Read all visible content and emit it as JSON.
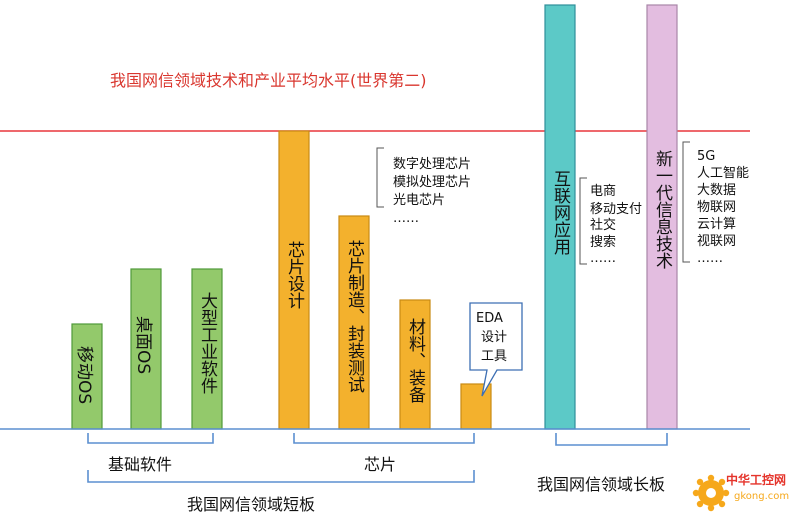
{
  "reference_line": {
    "label": "我国网信领域技术和产业平均水平(世界第二)",
    "color": "#e8373c"
  },
  "bars": [
    {
      "id": "mobile-os",
      "label": "移动OS",
      "color": "#93c96b",
      "border": "#4f9a3a"
    },
    {
      "id": "desktop-os",
      "label": "桌面OS",
      "color": "#93c96b",
      "border": "#4f9a3a"
    },
    {
      "id": "industrial-software",
      "label": "大型工业软件",
      "color": "#93c96b",
      "border": "#4f9a3a"
    },
    {
      "id": "chip-design",
      "label": "芯片设计",
      "color": "#f3b12d",
      "border": "#c98a13"
    },
    {
      "id": "chip-mfg",
      "label": "芯片制造、封装测试",
      "color": "#f3b12d",
      "border": "#c98a13"
    },
    {
      "id": "materials",
      "label": "材料、装备",
      "color": "#f3b12d",
      "border": "#c98a13"
    },
    {
      "id": "eda",
      "label": "",
      "color": "#f3b12d",
      "border": "#c98a13"
    },
    {
      "id": "internet-apps",
      "label": "互联网应用",
      "color": "#5cc9c7",
      "border": "#2f8f9a"
    },
    {
      "id": "new-it",
      "label": "新一代信息技术",
      "color": "#e3bde0",
      "border": "#a885a8"
    }
  ],
  "eda_callout": {
    "lines": [
      "EDA",
      "设计",
      "工具"
    ]
  },
  "annotations": {
    "chips": [
      "数字处理芯片",
      "模拟处理芯片",
      "光电芯片",
      "……"
    ],
    "internet": [
      "电商",
      "移动支付",
      "社交",
      "搜索",
      "……"
    ],
    "new_it": [
      "5G",
      "人工智能",
      "大数据",
      "物联网",
      "云计算",
      "视联网",
      "……"
    ]
  },
  "groups": {
    "basic_software": "基础软件",
    "chips": "芯片",
    "weakness": "我国网信领域短板",
    "strength": "我国网信领域长板"
  },
  "watermark": {
    "text": "中华工控网",
    "url": "gkong.com"
  },
  "colors": {
    "baseline": "#5b8fd0",
    "bracket": "#5b8fd0"
  }
}
